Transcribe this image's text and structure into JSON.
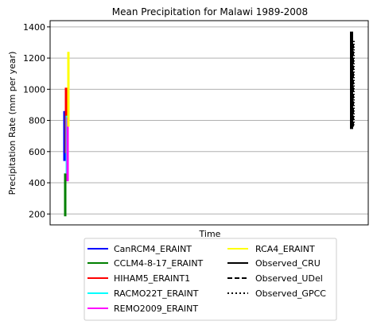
{
  "chart_data": {
    "type": "line",
    "title": "Mean Precipitation for Malawi 1989-2008",
    "xlabel": "Time",
    "ylabel": "Precipitation Rate (mm per year)",
    "ylim": [
      130,
      1440
    ],
    "yticks": [
      200,
      400,
      600,
      800,
      1000,
      1200,
      1400
    ],
    "grid": "horizontal",
    "legend_position": "bottom",
    "series": [
      {
        "name": "CanRCM4_ERAINT",
        "color": "#0000ff",
        "style": "solid",
        "group": "model",
        "min": 540,
        "max": 860
      },
      {
        "name": "CCLM4-8-17_ERAINT",
        "color": "#008000",
        "style": "solid",
        "group": "model",
        "min": 185,
        "max": 460
      },
      {
        "name": "HIHAM5_ERAINT1",
        "color": "#ff0000",
        "style": "solid",
        "group": "model",
        "min": 590,
        "max": 1010
      },
      {
        "name": "RACMO22T_ERAINT",
        "color": "#00ffff",
        "style": "solid",
        "group": "model",
        "min": 460,
        "max": 830
      },
      {
        "name": "REMO2009_ERAINT",
        "color": "#ff00ff",
        "style": "solid",
        "group": "model",
        "min": 410,
        "max": 820
      },
      {
        "name": "RCA4_ERAINT",
        "color": "#ffff00",
        "style": "solid",
        "group": "model",
        "min": 760,
        "max": 1240
      },
      {
        "name": "Observed_CRU",
        "color": "#000000",
        "style": "solid",
        "group": "observed",
        "min": 745,
        "max": 1370
      },
      {
        "name": "Observed_UDel",
        "color": "#000000",
        "style": "dashed",
        "group": "observed",
        "min": 760,
        "max": 1290
      },
      {
        "name": "Observed_GPCC",
        "color": "#000000",
        "style": "dotted",
        "group": "observed",
        "min": 770,
        "max": 1310
      }
    ]
  }
}
